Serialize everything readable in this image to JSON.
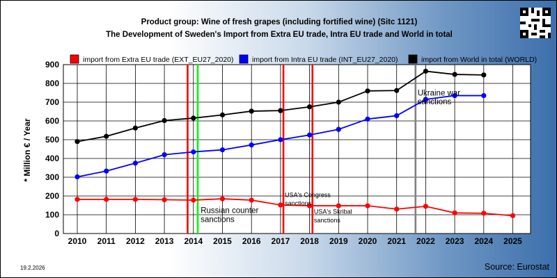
{
  "chart_data": {
    "type": "line",
    "title": "Product group: Wine of fresh grapes (including fortified wine) (Sitc 1121)",
    "subtitle": "The Development of Sweden's Import from Extra EU trade, Intra EU trade and World in total",
    "ylabel": "* Million € / Year",
    "xlabel": "",
    "ylim": [
      0,
      900
    ],
    "yticks": [
      0,
      100,
      200,
      300,
      400,
      500,
      600,
      700,
      800,
      900
    ],
    "xticks": [
      "2010",
      "2011",
      "2012",
      "2013",
      "2014",
      "2015",
      "2016",
      "2017",
      "2018",
      "2019",
      "2020",
      "2021",
      "2022",
      "2023",
      "2024",
      "2025"
    ],
    "grid": true,
    "legend_position": "top",
    "series": [
      {
        "name": "import from Extra EU trade (EXT_EU27_2020)",
        "color": "#ff0000",
        "x": [
          2010,
          2011,
          2012,
          2013,
          2014,
          2015,
          2016,
          2017,
          2018,
          2019,
          2020,
          2021,
          2022,
          2023,
          2024,
          2025
        ],
        "values": [
          182,
          182,
          182,
          180,
          178,
          185,
          178,
          152,
          148,
          148,
          148,
          130,
          145,
          110,
          108,
          95
        ]
      },
      {
        "name": "import from Intra EU trade (INT_EU27_2020)",
        "color": "#0000ff",
        "x": [
          2010,
          2011,
          2012,
          2013,
          2014,
          2015,
          2016,
          2017,
          2018,
          2019,
          2020,
          2021,
          2022,
          2023,
          2024
        ],
        "values": [
          302,
          333,
          375,
          420,
          435,
          446,
          472,
          500,
          525,
          555,
          610,
          628,
          715,
          735,
          735
        ]
      },
      {
        "name": "import from World in total (WORLD)",
        "color": "#000000",
        "x": [
          2010,
          2011,
          2012,
          2013,
          2014,
          2015,
          2016,
          2017,
          2018,
          2019,
          2020,
          2021,
          2022,
          2023,
          2024
        ],
        "values": [
          490,
          518,
          562,
          602,
          615,
          632,
          652,
          655,
          675,
          700,
          760,
          762,
          865,
          848,
          845
        ]
      }
    ],
    "events": [
      {
        "x": 2013.8,
        "color": "#ff0000",
        "label": ""
      },
      {
        "x": 2014.15,
        "color": "#00ff00",
        "label": ""
      },
      {
        "x": 2017.1,
        "color": "#ff0000",
        "label": ""
      },
      {
        "x": 2018.1,
        "color": "#ff0000",
        "label": ""
      },
      {
        "x": 2021.65,
        "color": "#808080",
        "label": ""
      }
    ],
    "annotations": [
      {
        "text": "Russian counter",
        "x": 2014.25,
        "y": 110,
        "size": "small"
      },
      {
        "text": "sanctions",
        "x": 2014.25,
        "y": 62,
        "size": "small"
      },
      {
        "text": "USA's Congress",
        "x": 2017.15,
        "y": 195,
        "size": "tiny"
      },
      {
        "text": "sanctions",
        "x": 2017.15,
        "y": 150,
        "size": "tiny"
      },
      {
        "text": "USA's Skribal",
        "x": 2018.15,
        "y": 105,
        "size": "tiny"
      },
      {
        "text": "sanctions",
        "x": 2018.15,
        "y": 60,
        "size": "tiny"
      },
      {
        "text": "Ukraine war",
        "x": 2021.72,
        "y": 735,
        "size": "small"
      },
      {
        "text": "sanctions",
        "x": 2021.72,
        "y": 688,
        "size": "small"
      }
    ]
  },
  "footer": {
    "date": "19.2.2026",
    "source": "Source: Eurostat"
  }
}
